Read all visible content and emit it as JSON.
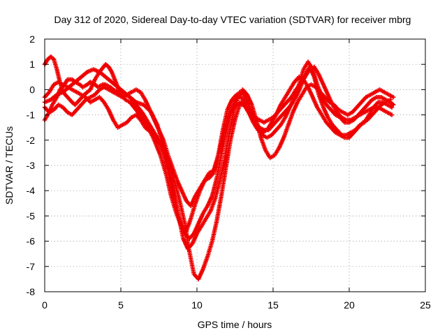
{
  "chart_data": {
    "type": "scatter",
    "title": "Day 312 of 2020, Sidereal Day-to-day VTEC variation (SDTVAR) for receiver mbrg",
    "xlabel": "GPS time / hours",
    "ylabel": "SDTVAR / TECUs",
    "xlim": [
      0,
      25
    ],
    "ylim": [
      -8,
      2
    ],
    "x_ticks": [
      0,
      5,
      10,
      15,
      20,
      25
    ],
    "y_ticks": [
      2,
      1,
      0,
      -1,
      -2,
      -3,
      -4,
      -5,
      -6,
      -7,
      -8
    ],
    "grid": true,
    "marker": "plus",
    "color": "#ee0000",
    "series": [
      {
        "x": [
          0,
          0.3,
          0.5,
          0.8,
          1.0,
          1.3,
          1.5,
          1.8,
          2.0,
          2.3,
          2.5,
          2.8,
          3.0,
          3.3,
          3.5,
          3.8,
          4.0,
          4.3,
          4.5,
          4.8,
          5.0,
          5.3,
          5.6,
          6.0,
          6.5,
          7.0,
          7.4,
          7.8,
          8.1,
          8.4,
          8.7,
          9.0,
          9.3,
          9.6,
          9.9,
          10.2,
          10.5,
          10.8,
          11.1,
          11.4,
          11.7,
          12.0,
          12.3,
          12.6,
          12.9,
          13.2,
          13.5,
          13.8,
          14.1,
          14.4,
          14.7,
          15.0,
          15.3,
          15.6,
          15.9,
          16.2,
          16.5,
          16.8,
          17.1,
          17.4,
          17.7,
          18.0,
          18.3,
          18.6,
          18.9,
          19.2,
          19.5,
          19.8,
          20.1,
          20.4,
          20.7,
          21.0,
          21.3,
          21.6,
          21.9,
          22.2,
          22.5,
          22.8
        ],
        "y": [
          -1.2,
          -0.9,
          -0.6,
          -0.3,
          0.0,
          0.2,
          0.4,
          0.4,
          0.3,
          0.2,
          0.1,
          0.2,
          0.3,
          0.2,
          0.1,
          0.2,
          0.2,
          0.1,
          0.0,
          -0.1,
          -0.1,
          -0.2,
          -0.3,
          -0.5,
          -0.6,
          -0.9,
          -1.4,
          -2.2,
          -3.0,
          -3.9,
          -4.8,
          -5.4,
          -5.6,
          -5.1,
          -4.5,
          -4.0,
          -3.6,
          -3.3,
          -3.2,
          -2.6,
          -1.9,
          -1.2,
          -0.8,
          -0.6,
          -0.5,
          -0.7,
          -1.0,
          -1.3,
          -1.5,
          -1.6,
          -1.6,
          -1.4,
          -1.2,
          -1.0,
          -0.8,
          -0.6,
          -0.3,
          0.1,
          0.6,
          0.9,
          0.5,
          -0.2,
          -0.7,
          -1.1,
          -1.4,
          -1.6,
          -1.8,
          -1.8,
          -1.7,
          -1.6,
          -1.4,
          -1.3,
          -1.0,
          -0.7,
          -0.5,
          -0.5,
          -0.6,
          -0.7
        ]
      },
      {
        "x": [
          0,
          0.2,
          0.4,
          0.6,
          0.8,
          1.0,
          1.2,
          1.5,
          1.8,
          2.0,
          2.3,
          2.6,
          3.0,
          3.3,
          3.6,
          4.0,
          4.2,
          4.4,
          4.6,
          4.8,
          5.0,
          5.3,
          5.6,
          6.0,
          6.4,
          6.8,
          7.2,
          7.6,
          8.0,
          8.3,
          8.6,
          8.9,
          9.2,
          9.5,
          9.8,
          10.1,
          10.4,
          10.7,
          11.0,
          11.3,
          11.6,
          11.9,
          12.2,
          12.5,
          12.8,
          13.1,
          13.4,
          13.7,
          14.0,
          14.3,
          14.6,
          14.9,
          15.2,
          15.5,
          15.8,
          16.1,
          16.4,
          16.7,
          17.0,
          17.3,
          17.6,
          17.9,
          18.2,
          18.5,
          18.8,
          19.1,
          19.4,
          19.7,
          20.0,
          20.3,
          20.6,
          20.9,
          21.2,
          21.5,
          21.8,
          22.1,
          22.4,
          22.7,
          22.9
        ],
        "y": [
          1.0,
          1.2,
          1.3,
          1.2,
          0.8,
          0.3,
          -0.1,
          -0.3,
          -0.5,
          -0.6,
          -0.4,
          -0.2,
          0.0,
          0.4,
          0.7,
          1.0,
          0.9,
          0.7,
          0.4,
          0.1,
          -0.2,
          -0.4,
          -0.5,
          -0.8,
          -1.1,
          -1.5,
          -2.0,
          -2.6,
          -3.4,
          -4.2,
          -4.8,
          -5.3,
          -5.7,
          -5.9,
          -5.7,
          -5.3,
          -4.9,
          -4.6,
          -4.2,
          -3.5,
          -2.6,
          -1.7,
          -0.9,
          -0.4,
          -0.1,
          -0.2,
          -0.6,
          -1.1,
          -1.5,
          -1.8,
          -1.9,
          -1.8,
          -1.6,
          -1.4,
          -1.1,
          -0.7,
          -0.3,
          0.2,
          0.8,
          1.1,
          0.8,
          0.2,
          -0.3,
          -0.6,
          -0.8,
          -1.0,
          -1.1,
          -1.3,
          -1.3,
          -1.2,
          -1.0,
          -0.8,
          -0.6,
          -0.4,
          -0.3,
          -0.3,
          -0.4,
          -0.5,
          -0.6
        ]
      },
      {
        "x": [
          0,
          0.3,
          0.6,
          0.9,
          1.2,
          1.5,
          1.8,
          2.1,
          2.4,
          2.7,
          3.0,
          3.3,
          3.6,
          3.9,
          4.2,
          4.5,
          4.8,
          5.1,
          5.4,
          5.7,
          6.0,
          6.3,
          6.6,
          7.0,
          7.3,
          7.6,
          7.9,
          8.2,
          8.5,
          8.8,
          9.1,
          9.4,
          9.7,
          10.0,
          10.3,
          10.6,
          10.9,
          11.2,
          11.5,
          11.8,
          12.1,
          12.4,
          12.7,
          13.0,
          13.3,
          13.6,
          13.9,
          14.2,
          14.5,
          14.8,
          15.1,
          15.4,
          15.7,
          16.0,
          16.3,
          16.6,
          16.9,
          17.2,
          17.5,
          17.8,
          18.1,
          18.4,
          18.7,
          19.0,
          19.3,
          19.6,
          19.9,
          20.2,
          20.5,
          20.8,
          21.1,
          21.4,
          21.7,
          22.0,
          22.3,
          22.6,
          22.9
        ],
        "y": [
          -0.3,
          -0.1,
          0.2,
          0.3,
          0.2,
          0.1,
          0.0,
          -0.1,
          -0.2,
          -0.3,
          -0.5,
          -0.4,
          -0.3,
          -0.5,
          -0.8,
          -1.2,
          -1.5,
          -1.4,
          -1.3,
          -1.1,
          -1.0,
          -1.2,
          -1.5,
          -1.7,
          -1.9,
          -2.2,
          -2.7,
          -3.4,
          -4.2,
          -5.0,
          -5.9,
          -6.3,
          -6.1,
          -5.7,
          -5.4,
          -5.1,
          -4.8,
          -4.3,
          -3.6,
          -2.8,
          -1.8,
          -0.9,
          -0.3,
          0.0,
          -0.2,
          -0.6,
          -1.2,
          -1.9,
          -2.4,
          -2.7,
          -2.6,
          -2.3,
          -1.9,
          -1.4,
          -0.9,
          -0.5,
          -0.2,
          0.1,
          0.2,
          0.1,
          -0.1,
          -0.3,
          -0.5,
          -0.6,
          -0.8,
          -0.9,
          -1.0,
          -0.9,
          -0.7,
          -0.5,
          -0.3,
          -0.2,
          -0.1,
          0.0,
          -0.1,
          -0.2,
          -0.3
        ]
      },
      {
        "x": [
          0,
          0.3,
          0.6,
          0.9,
          1.2,
          1.5,
          1.8,
          2.1,
          2.4,
          2.7,
          3.0,
          3.3,
          3.6,
          3.9,
          4.2,
          4.5,
          4.8,
          5.1,
          5.4,
          5.7,
          6.0,
          6.3,
          6.6,
          6.9,
          7.2,
          7.5,
          7.8,
          8.1,
          8.4,
          8.7,
          9.0,
          9.3,
          9.6,
          9.9,
          10.2,
          10.5,
          10.8,
          11.1,
          11.4,
          11.7,
          12.0,
          12.3,
          12.6,
          12.9,
          13.2,
          13.5,
          13.8,
          14.1,
          14.4,
          14.7,
          15.0,
          15.3,
          15.6,
          15.9,
          16.2,
          16.5,
          16.8,
          17.1,
          17.4,
          17.7,
          18.0,
          18.3,
          18.6,
          18.9,
          19.2,
          19.5,
          19.8,
          20.1,
          20.4,
          20.7,
          21.0,
          21.3,
          21.6,
          21.9,
          22.2,
          22.5,
          22.8
        ],
        "y": [
          -0.7,
          -0.9,
          -0.8,
          -0.6,
          -0.7,
          -0.9,
          -1.0,
          -0.8,
          -0.6,
          -0.4,
          -0.3,
          -0.2,
          0.0,
          0.1,
          0.0,
          -0.1,
          -0.2,
          -0.3,
          -0.2,
          -0.1,
          0.0,
          -0.1,
          -0.4,
          -0.8,
          -1.2,
          -1.6,
          -2.0,
          -2.6,
          -3.1,
          -3.6,
          -4.0,
          -4.4,
          -4.6,
          -4.2,
          -3.9,
          -3.6,
          -3.5,
          -3.3,
          -2.6,
          -1.6,
          -0.8,
          -0.4,
          -0.2,
          -0.3,
          -0.6,
          -0.9,
          -1.1,
          -1.2,
          -1.3,
          -1.2,
          -1.1,
          -0.9,
          -0.7,
          -0.5,
          -0.3,
          0.0,
          0.2,
          0.5,
          0.8,
          0.9,
          0.6,
          0.2,
          -0.2,
          -0.6,
          -0.9,
          -1.1,
          -1.2,
          -1.2,
          -1.1,
          -1.0,
          -0.9,
          -0.8,
          -0.7,
          -0.7,
          -0.8,
          -0.9,
          -1.0
        ]
      },
      {
        "x": [
          0,
          0.4,
          0.8,
          1.2,
          1.6,
          2.0,
          2.4,
          2.8,
          3.2,
          3.6,
          4.0,
          4.4,
          4.8,
          5.2,
          5.6,
          6.0,
          6.4,
          6.8,
          7.2,
          7.6,
          8.0,
          8.3,
          8.6,
          8.9,
          9.2,
          9.5,
          9.8,
          10.1,
          10.4,
          10.7,
          11.0,
          11.3,
          11.6,
          11.9,
          12.2,
          12.5,
          12.8,
          13.1,
          13.4,
          13.7,
          14.0,
          14.3,
          14.6,
          14.9,
          15.2,
          15.5,
          15.8,
          16.1,
          16.4,
          16.7,
          17.0,
          17.3,
          17.6,
          17.9,
          18.2,
          18.5,
          18.8,
          19.1,
          19.4,
          19.7,
          20.0,
          20.3,
          20.6,
          20.9,
          21.2,
          21.5,
          21.8,
          22.1,
          22.4,
          22.7
        ],
        "y": [
          -0.5,
          -0.4,
          -0.2,
          -0.1,
          0.1,
          0.3,
          0.5,
          0.7,
          0.8,
          0.7,
          0.5,
          0.3,
          0.1,
          -0.1,
          -0.3,
          -0.6,
          -0.9,
          -1.3,
          -1.7,
          -2.1,
          -2.6,
          -3.2,
          -3.8,
          -4.5,
          -5.3,
          -6.4,
          -7.3,
          -7.5,
          -7.1,
          -6.6,
          -6.0,
          -5.2,
          -4.2,
          -3.1,
          -2.0,
          -1.2,
          -0.6,
          -0.6,
          -0.9,
          -1.3,
          -1.6,
          -1.7,
          -1.6,
          -1.3,
          -1.0,
          -0.6,
          -0.3,
          0.0,
          0.3,
          0.5,
          0.4,
          0.1,
          -0.3,
          -0.7,
          -1.0,
          -1.3,
          -1.5,
          -1.7,
          -1.8,
          -1.9,
          -1.9,
          -1.7,
          -1.5,
          -1.3,
          -1.2,
          -1.0,
          -0.8,
          -0.6,
          -0.5,
          -0.4
        ]
      }
    ]
  }
}
